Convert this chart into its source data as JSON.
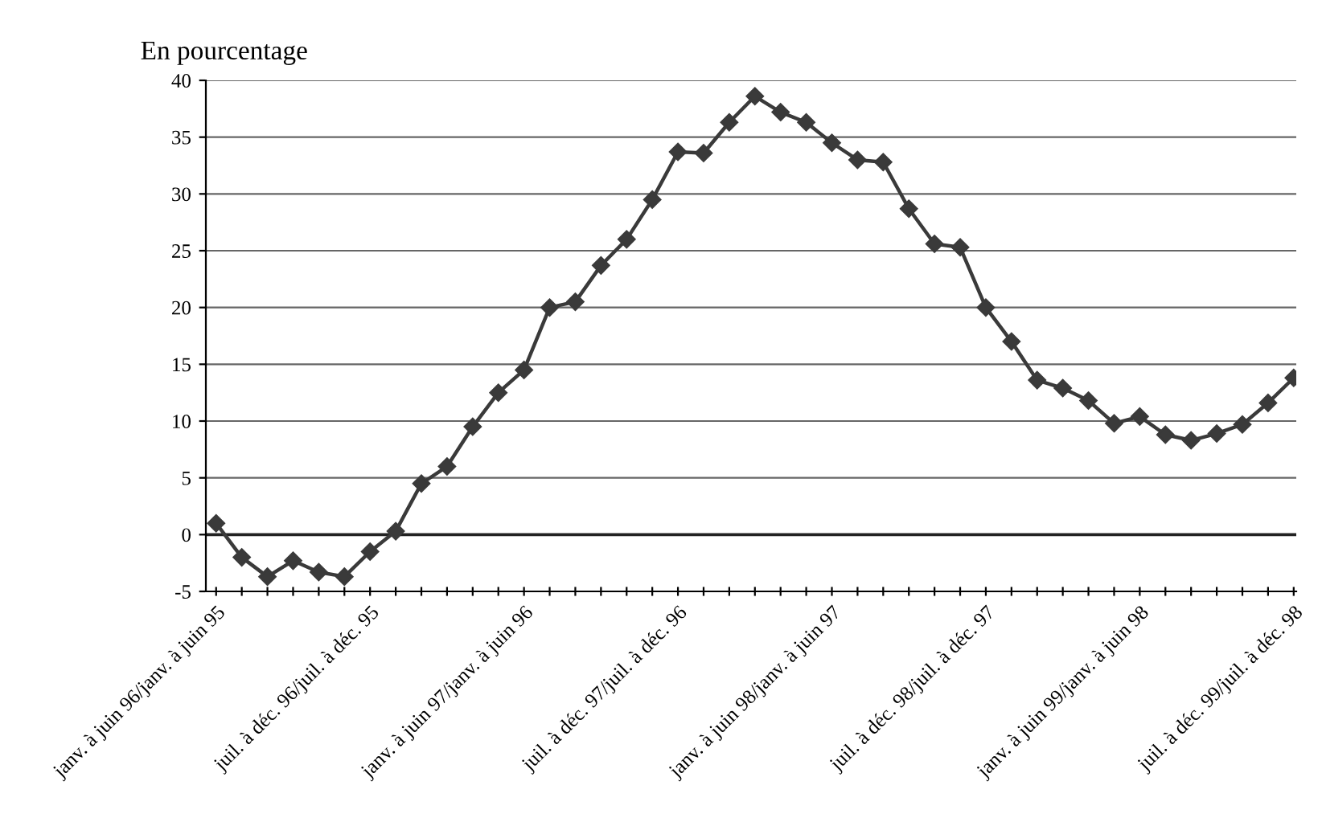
{
  "chart_data": {
    "type": "line",
    "ylabel": "En pourcentage",
    "categories": [
      "janv. à juin 96/janv. à juin 95",
      null,
      null,
      null,
      null,
      null,
      "juil. à déc. 96/juil. à déc. 95",
      null,
      null,
      null,
      null,
      null,
      "janv. à juin 97/janv. à juin 96",
      null,
      null,
      null,
      null,
      null,
      "juil. à déc. 97/juil. à déc. 96",
      null,
      null,
      null,
      null,
      null,
      "janv. à juin 98/janv. à juin 97",
      null,
      null,
      null,
      null,
      null,
      "juil. à déc. 98/juil. à déc. 97",
      null,
      null,
      null,
      null,
      null,
      "janv. à juin 99/janv. à juin 98",
      null,
      null,
      null,
      null,
      null,
      "juil. à déc. 99/juil. à déc. 98"
    ],
    "series": [
      {
        "color": "#3a3a3a",
        "values": [
          1,
          -2,
          -3.7,
          -2.3,
          -3.3,
          -3.7,
          -1.5,
          0.3,
          4.5,
          6,
          9.5,
          12.5,
          14.5,
          20,
          20.5,
          23.7,
          26,
          29.5,
          33.7,
          33.6,
          36.3,
          38.6,
          37.2,
          36.3,
          34.5,
          33,
          32.8,
          28.7,
          25.6,
          25.3,
          20,
          17,
          13.6,
          12.9,
          11.8,
          9.8,
          10.4,
          8.8,
          8.3,
          8.9,
          9.7,
          11.6,
          13.8
        ]
      }
    ],
    "ylim": [
      -5,
      40
    ],
    "yticks": [
      -5,
      0,
      5,
      10,
      15,
      20,
      25,
      30,
      35,
      40
    ],
    "grid": "y",
    "marker": "diamond",
    "line_style": "solid",
    "ref_lines": [
      {
        "axis": "y",
        "value": 0,
        "color": "#222222"
      }
    ]
  }
}
